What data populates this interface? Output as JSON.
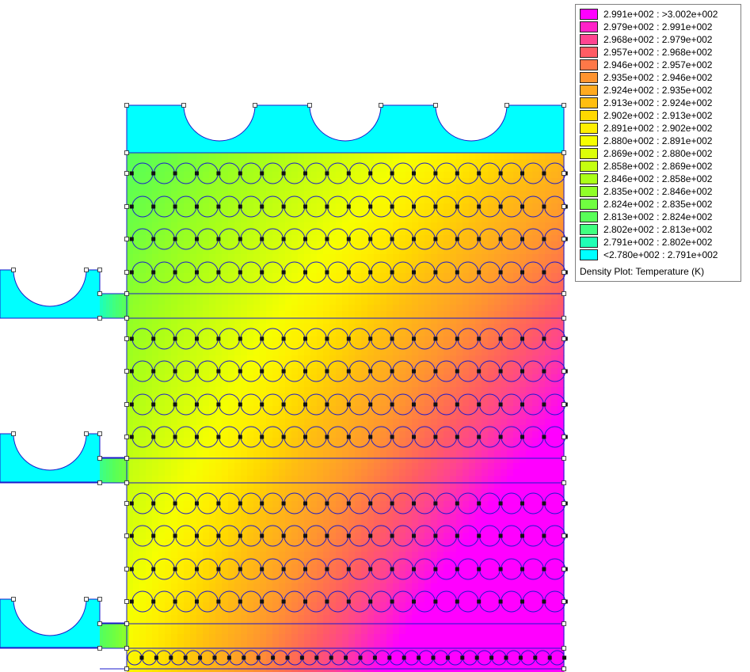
{
  "plot": {
    "title": "Density Plot: Temperature (K)",
    "outline_color": "#1a1acc",
    "node_color": "#111111",
    "min_color": "#00ffff",
    "max_color": "#ff00ff"
  },
  "legend": {
    "entries": [
      {
        "label": "2.991e+002 : >3.002e+002",
        "color": "#ff00ff"
      },
      {
        "label": "2.979e+002 : 2.991e+002",
        "color": "#ff22c8"
      },
      {
        "label": "2.968e+002 : 2.979e+002",
        "color": "#ff4490"
      },
      {
        "label": "2.957e+002 : 2.968e+002",
        "color": "#ff5c64"
      },
      {
        "label": "2.946e+002 : 2.957e+002",
        "color": "#ff7848"
      },
      {
        "label": "2.935e+002 : 2.946e+002",
        "color": "#ff9430"
      },
      {
        "label": "2.924e+002 : 2.935e+002",
        "color": "#ffaa20"
      },
      {
        "label": "2.913e+002 : 2.924e+002",
        "color": "#ffbe10"
      },
      {
        "label": "2.902e+002 : 2.913e+002",
        "color": "#ffd800"
      },
      {
        "label": "2.891e+002 : 2.902e+002",
        "color": "#ffee00"
      },
      {
        "label": "2.880e+002 : 2.891e+002",
        "color": "#f6ff00"
      },
      {
        "label": "2.869e+002 : 2.880e+002",
        "color": "#dcff08"
      },
      {
        "label": "2.858e+002 : 2.869e+002",
        "color": "#c4ff10"
      },
      {
        "label": "2.846e+002 : 2.858e+002",
        "color": "#aaff18"
      },
      {
        "label": "2.835e+002 : 2.846e+002",
        "color": "#90ff28"
      },
      {
        "label": "2.824e+002 : 2.835e+002",
        "color": "#70ff40"
      },
      {
        "label": "2.813e+002 : 2.824e+002",
        "color": "#58ff58"
      },
      {
        "label": "2.802e+002 : 2.813e+002",
        "color": "#40ff80"
      },
      {
        "label": "2.791e+002 : 2.802e+002",
        "color": "#20ffb4"
      },
      {
        "label": "<2.780e+002 : 2.791e+002",
        "color": "#00ffff"
      }
    ]
  }
}
